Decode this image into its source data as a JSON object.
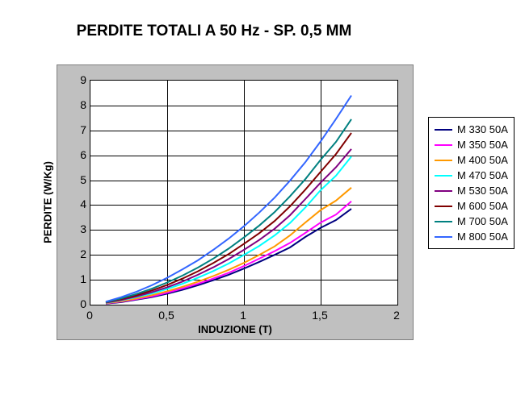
{
  "chart": {
    "type": "line",
    "title": "PERDITE TOTALI A 50 Hz - SP. 0,5 MM",
    "title_fontsize": 19,
    "xlabel": "INDUZIONE (T)",
    "ylabel": "PERDITE (W/Kg)",
    "label_fontsize": 13,
    "tick_fontsize": 14,
    "xlim": [
      0,
      2
    ],
    "ylim": [
      0,
      9
    ],
    "xticks": [
      0,
      0.5,
      1,
      1.5,
      2
    ],
    "xtick_labels": [
      "0",
      "0,5",
      "1",
      "1,5",
      "2"
    ],
    "yticks": [
      0,
      1,
      2,
      3,
      4,
      5,
      6,
      7,
      8,
      9
    ],
    "ytick_labels": [
      "0",
      "1",
      "2",
      "3",
      "4",
      "5",
      "6",
      "7",
      "8",
      "9"
    ],
    "background_color": "#ffffff",
    "plot_outer_bg": "#c0c0c0",
    "plot_inner_bg": "#ffffff",
    "grid_color": "#000000",
    "border_color": "#000000",
    "x_values": [
      0.1,
      0.2,
      0.3,
      0.4,
      0.5,
      0.6,
      0.7,
      0.8,
      0.9,
      1.0,
      1.1,
      1.2,
      1.3,
      1.4,
      1.5,
      1.6,
      1.7
    ],
    "series": [
      {
        "name": "M 330 50A",
        "color": "#000080",
        "y": [
          0.04,
          0.1,
          0.2,
          0.3,
          0.44,
          0.6,
          0.78,
          0.98,
          1.2,
          1.45,
          1.72,
          2.0,
          2.3,
          2.72,
          3.09,
          3.4,
          3.85
        ]
      },
      {
        "name": "M 350 50A",
        "color": "#ff00ff",
        "y": [
          0.05,
          0.12,
          0.22,
          0.33,
          0.48,
          0.65,
          0.84,
          1.05,
          1.28,
          1.55,
          1.85,
          2.15,
          2.48,
          2.88,
          3.3,
          3.62,
          4.15
        ]
      },
      {
        "name": "M 400 50A",
        "color": "#ff9900",
        "y": [
          0.06,
          0.14,
          0.25,
          0.38,
          0.54,
          0.72,
          0.92,
          1.15,
          1.4,
          1.68,
          2.0,
          2.34,
          2.78,
          3.3,
          3.8,
          4.18,
          4.7
        ]
      },
      {
        "name": "M 470 50A",
        "color": "#00ffff",
        "y": [
          0.07,
          0.17,
          0.3,
          0.45,
          0.63,
          0.84,
          1.08,
          1.35,
          1.65,
          2.0,
          2.36,
          2.78,
          3.28,
          3.9,
          4.6,
          5.18,
          5.95
        ]
      },
      {
        "name": "M 530 50A",
        "color": "#800080",
        "y": [
          0.08,
          0.19,
          0.33,
          0.5,
          0.7,
          0.93,
          1.2,
          1.5,
          1.83,
          2.2,
          2.6,
          3.05,
          3.59,
          4.24,
          4.9,
          5.52,
          6.25
        ]
      },
      {
        "name": "M 600 50A",
        "color": "#800000",
        "y": [
          0.09,
          0.22,
          0.38,
          0.57,
          0.79,
          1.05,
          1.34,
          1.67,
          2.03,
          2.44,
          2.87,
          3.36,
          3.95,
          4.62,
          5.34,
          6.05,
          6.9
        ]
      },
      {
        "name": "M 700 50A",
        "color": "#008080",
        "y": [
          0.1,
          0.25,
          0.43,
          0.64,
          0.89,
          1.17,
          1.49,
          1.85,
          2.25,
          2.7,
          3.18,
          3.72,
          4.35,
          5.04,
          5.82,
          6.54,
          7.45
        ]
      },
      {
        "name": "M 800 50A",
        "color": "#3366ff",
        "y": [
          0.12,
          0.3,
          0.52,
          0.78,
          1.08,
          1.42,
          1.78,
          2.2,
          2.65,
          3.15,
          3.7,
          4.3,
          4.98,
          5.72,
          6.56,
          7.46,
          8.4
        ]
      }
    ]
  }
}
